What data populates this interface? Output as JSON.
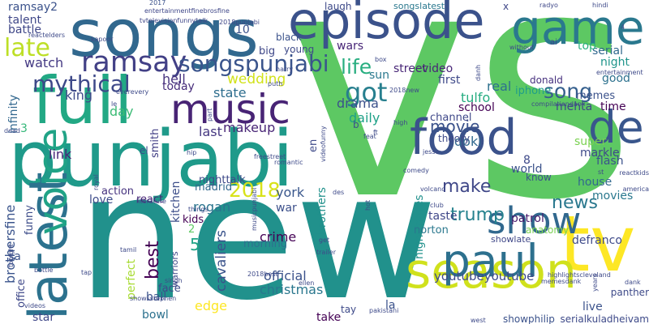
{
  "words": [
    {
      "text": "vs",
      "color": "#5dc863"
    },
    {
      "text": "new",
      "color": "#21918c"
    },
    {
      "text": "songs",
      "color": "#31688e"
    },
    {
      "text": "punjabi",
      "color": "#1f9a8a"
    },
    {
      "text": "episode",
      "color": "#3b528b"
    },
    {
      "text": "game",
      "color": "#2a788e"
    },
    {
      "text": "full",
      "color": "#22a884"
    },
    {
      "text": "tv",
      "color": "#fde725"
    },
    {
      "text": "season",
      "color": "#d0e11c"
    },
    {
      "text": "latest",
      "color": "#2c728e"
    },
    {
      "text": "voice",
      "color": "#20a386"
    },
    {
      "text": "music",
      "color": "#482475"
    },
    {
      "text": "food",
      "color": "#3b528b"
    },
    {
      "text": "paul",
      "color": "#2d708e"
    },
    {
      "text": "de",
      "color": "#39568c"
    },
    {
      "text": "show",
      "color": "#31688e"
    },
    {
      "text": "ramsay",
      "color": "#424086"
    },
    {
      "text": "songspunjabi",
      "color": "#3a548c"
    },
    {
      "text": "mythical",
      "color": "#3e4989"
    },
    {
      "text": "late",
      "color": "#bddf26"
    },
    {
      "text": "got",
      "color": "#277f8e"
    },
    {
      "text": "life",
      "color": "#28ae80"
    },
    {
      "text": "song",
      "color": "#355f8d"
    },
    {
      "text": "2018",
      "color": "#d8e219"
    },
    {
      "text": "make",
      "color": "#3f4788"
    },
    {
      "text": "movie",
      "color": "#3b528b"
    },
    {
      "text": "trump",
      "color": "#26828e"
    },
    {
      "text": "news",
      "color": "#2a788e"
    },
    {
      "text": "best",
      "color": "#440154"
    },
    {
      "text": "watch",
      "color": "#443983"
    },
    {
      "text": "king",
      "color": "#3e4a89"
    },
    {
      "text": "hell",
      "color": "#46327e"
    },
    {
      "text": "today",
      "color": "#472d7b"
    },
    {
      "text": "state",
      "color": "#2e6e8e"
    },
    {
      "text": "smith",
      "color": "#423f85"
    },
    {
      "text": "kitchen",
      "color": "#3d4e8a"
    },
    {
      "text": "wedding",
      "color": "#d2e21b"
    },
    {
      "text": "drama",
      "color": "#3b518b"
    },
    {
      "text": "daily",
      "color": "#1fa188"
    },
    {
      "text": "makeup",
      "color": "#482576"
    },
    {
      "text": "last",
      "color": "#453781"
    },
    {
      "text": "day",
      "color": "#3bbb75"
    },
    {
      "text": "love",
      "color": "#3e4c8a"
    },
    {
      "text": "action",
      "color": "#46337f"
    },
    {
      "text": "funny",
      "color": "#3d4d8a"
    },
    {
      "text": "kids",
      "color": "#440154"
    },
    {
      "text": "rogan",
      "color": "#2b748e"
    },
    {
      "text": "madrid",
      "color": "#31688e"
    },
    {
      "text": "york",
      "color": "#39568c"
    },
    {
      "text": "war",
      "color": "#3c508b"
    },
    {
      "text": "crime",
      "color": "#440154"
    },
    {
      "text": "morning",
      "color": "#2d708e"
    },
    {
      "text": "christmas",
      "color": "#2a778e"
    },
    {
      "text": "official",
      "color": "#3b528b"
    },
    {
      "text": "youtubeyoutube",
      "color": "#3e4989"
    },
    {
      "text": "perfect",
      "color": "#a8db34"
    },
    {
      "text": "cavaliers",
      "color": "#3a538b"
    },
    {
      "text": "ball",
      "color": "#3b528b"
    },
    {
      "text": "edge",
      "color": "#fde725"
    },
    {
      "text": "bowl",
      "color": "#2c718e"
    },
    {
      "text": "star",
      "color": "#3f4788"
    },
    {
      "text": "office",
      "color": "#3f4889"
    },
    {
      "text": "brothersfine",
      "color": "#3a548c"
    },
    {
      "text": "infinity",
      "color": "#31678e"
    },
    {
      "text": "first",
      "color": "#3e4989"
    },
    {
      "text": "real",
      "color": "#2d708e"
    },
    {
      "text": "tulfo",
      "color": "#26ad81"
    },
    {
      "text": "school",
      "color": "#440154"
    },
    {
      "text": "channel",
      "color": "#3f4889"
    },
    {
      "text": "doki",
      "color": "#31688e"
    },
    {
      "text": "world",
      "color": "#3b528b"
    },
    {
      "text": "taste",
      "color": "#3f4788"
    },
    {
      "text": "patrol",
      "color": "#481b6d"
    },
    {
      "text": "brothers",
      "color": "#21918c"
    },
    {
      "text": "nightmares",
      "color": "#21918c"
    },
    {
      "text": "iphone",
      "color": "#1f9e89"
    },
    {
      "text": "donald",
      "color": "#46307e"
    },
    {
      "text": "memes",
      "color": "#3b528b"
    },
    {
      "text": "mehta",
      "color": "#3f4788"
    },
    {
      "text": "time",
      "color": "#440154"
    },
    {
      "text": "serial",
      "color": "#30688e"
    },
    {
      "text": "night",
      "color": "#1f958b"
    },
    {
      "text": "top",
      "color": "#29af7f"
    },
    {
      "text": "good",
      "color": "#2c718e"
    },
    {
      "text": "super",
      "color": "#7ad151"
    },
    {
      "text": "markle",
      "color": "#3e4a89"
    },
    {
      "text": "flash",
      "color": "#3b528b"
    },
    {
      "text": "house",
      "color": "#31688e"
    },
    {
      "text": "movies",
      "color": "#2a788e"
    },
    {
      "text": "defranco",
      "color": "#3e4a89"
    },
    {
      "text": "live",
      "color": "#3b528b"
    },
    {
      "text": "showlate",
      "color": "#3f4788"
    },
    {
      "text": "norton",
      "color": "#2a788e"
    },
    {
      "text": "street",
      "color": "#482677"
    },
    {
      "text": "video",
      "color": "#482677"
    },
    {
      "text": "sun",
      "color": "#2a788e"
    },
    {
      "text": "wars",
      "color": "#482677"
    },
    {
      "text": "young",
      "color": "#3e4a89"
    },
    {
      "text": "take",
      "color": "#440154"
    },
    {
      "text": "la",
      "color": "#3b528b"
    },
    {
      "text": "james",
      "color": "#440154"
    },
    {
      "text": "ramsay2",
      "color": "#3b528b"
    },
    {
      "text": "talent",
      "color": "#3f4788"
    },
    {
      "text": "battle",
      "color": "#3f4788"
    },
    {
      "text": "link",
      "color": "#482677"
    },
    {
      "text": "el",
      "color": "#3e4a89"
    },
    {
      "text": "sa",
      "color": "#3b528b"
    },
    {
      "text": "3",
      "color": "#35b779"
    },
    {
      "text": "5",
      "color": "#20a486"
    },
    {
      "text": "2",
      "color": "#5ec962"
    },
    {
      "text": "10",
      "color": "#3b528b"
    },
    {
      "text": "x",
      "color": "#3f4788"
    },
    {
      "text": "8",
      "color": "#3e4a89"
    },
    {
      "text": "b",
      "color": "#3b528b"
    },
    {
      "text": "en",
      "color": "#3e4a89"
    },
    {
      "text": "black",
      "color": "#3b528b"
    },
    {
      "text": "big",
      "color": "#3f4788"
    },
    {
      "text": "face",
      "color": "#3e4a89"
    },
    {
      "text": "react",
      "color": "#482677"
    },
    {
      "text": "warriors",
      "color": "#3e4a89"
    },
    {
      "text": "nighttalk",
      "color": "#3e4a89"
    },
    {
      "text": "know",
      "color": "#3b528b"
    },
    {
      "text": "anatomy",
      "color": "#7ad151"
    },
    {
      "text": "panther",
      "color": "#3e4a89"
    },
    {
      "text": "tay",
      "color": "#3e4a89"
    },
    {
      "text": "theory",
      "color": "#3e4a89"
    },
    {
      "text": "laugh",
      "color": "#3e4a89"
    },
    {
      "text": "songslatest",
      "color": "#2a788e"
    },
    {
      "text": "showphilip",
      "color": "#3b528b"
    },
    {
      "text": "serialkuladheivam",
      "color": "#3e4a89"
    },
    {
      "text": "2017",
      "color": "#3b528b"
    },
    {
      "text": "entertainmentfinebrosfine",
      "color": "#3f4788"
    },
    {
      "text": "tvtelevisionfunnytalk",
      "color": "#3f4788"
    },
    {
      "text": "2018punjabi",
      "color": "#3f4788"
    },
    {
      "text": "radyo",
      "color": "#3f4788"
    },
    {
      "text": "hindi",
      "color": "#3e4a89"
    },
    {
      "text": "reactelders",
      "color": "#3e4a89"
    },
    {
      "text": "kapoor",
      "color": "#3e4a89"
    },
    {
      "text": "harry",
      "color": "#3e4a89"
    },
    {
      "text": "puth",
      "color": "#3e4a89"
    },
    {
      "text": "everevery",
      "color": "#3e4a89"
    },
    {
      "text": "entertainment",
      "color": "#3e4a89"
    },
    {
      "text": "compilationdank",
      "color": "#3e4a89"
    },
    {
      "text": "reactkids",
      "color": "#3e4a89"
    },
    {
      "text": "america",
      "color": "#3e4a89"
    },
    {
      "text": "dank",
      "color": "#3e4a89"
    },
    {
      "text": "west",
      "color": "#3e4a89"
    },
    {
      "text": "highlightscleveland",
      "color": "#3e4a89"
    },
    {
      "text": "memesdank",
      "color": "#3e4a89"
    },
    {
      "text": "pakistani",
      "color": "#3e4a89"
    },
    {
      "text": "trailer",
      "color": "#3e4a89"
    },
    {
      "text": "ellen",
      "color": "#3e4a89"
    },
    {
      "text": "2018best",
      "color": "#3e4a89"
    },
    {
      "text": "singh",
      "color": "#3e4a89"
    },
    {
      "text": "tamil",
      "color": "#3e4a89"
    },
    {
      "text": "dead",
      "color": "#3e4a89"
    },
    {
      "text": "royal",
      "color": "#3e4a89"
    },
    {
      "text": "literature",
      "color": "#3e4a89"
    },
    {
      "text": "romantic",
      "color": "#3e4a89"
    },
    {
      "text": "hip",
      "color": "#3e4a89"
    },
    {
      "text": "tonight",
      "color": "#3e4a89"
    },
    {
      "text": "videos",
      "color": "#3e4a89"
    },
    {
      "text": "bottle",
      "color": "#3e4a89"
    },
    {
      "text": "tap",
      "color": "#3e4a89"
    },
    {
      "text": "years",
      "color": "#3e4a89"
    },
    {
      "text": "comedy",
      "color": "#3e4a89"
    },
    {
      "text": "high",
      "color": "#3e4a89"
    },
    {
      "text": "volcano",
      "color": "#3e4a89"
    },
    {
      "text": "club",
      "color": "#3e4a89"
    },
    {
      "text": "without",
      "color": "#3e4a89"
    },
    {
      "text": "des",
      "color": "#3e4a89"
    },
    {
      "text": "ft",
      "color": "#3e4a89"
    },
    {
      "text": "feat",
      "color": "#3e4a89"
    },
    {
      "text": "2018new",
      "color": "#3e4a89"
    },
    {
      "text": "box",
      "color": "#3e4a89"
    },
    {
      "text": "things",
      "color": "#3e4a89"
    },
    {
      "text": "hot",
      "color": "#3e4a89"
    },
    {
      "text": "videofunny",
      "color": "#3e4a89"
    },
    {
      "text": "freestreet",
      "color": "#3e4a89"
    },
    {
      "text": "le",
      "color": "#3e4a89"
    },
    {
      "text": "part",
      "color": "#3e4a89"
    },
    {
      "text": "jesse",
      "color": "#3e4a89"
    },
    {
      "text": "musicpunjabi",
      "color": "#3e4a89"
    },
    {
      "text": "showsstephen",
      "color": "#3e4a89"
    },
    {
      "text": "get",
      "color": "#3e4a89"
    },
    {
      "text": "4",
      "color": "#3e4a89"
    },
    {
      "text": "st",
      "color": "#3e4a89"
    },
    {
      "text": "ai",
      "color": "#3e4a89"
    },
    {
      "text": "danh",
      "color": "#3e4a89"
    },
    {
      "text": "ppa",
      "color": "#3e4a89"
    }
  ]
}
